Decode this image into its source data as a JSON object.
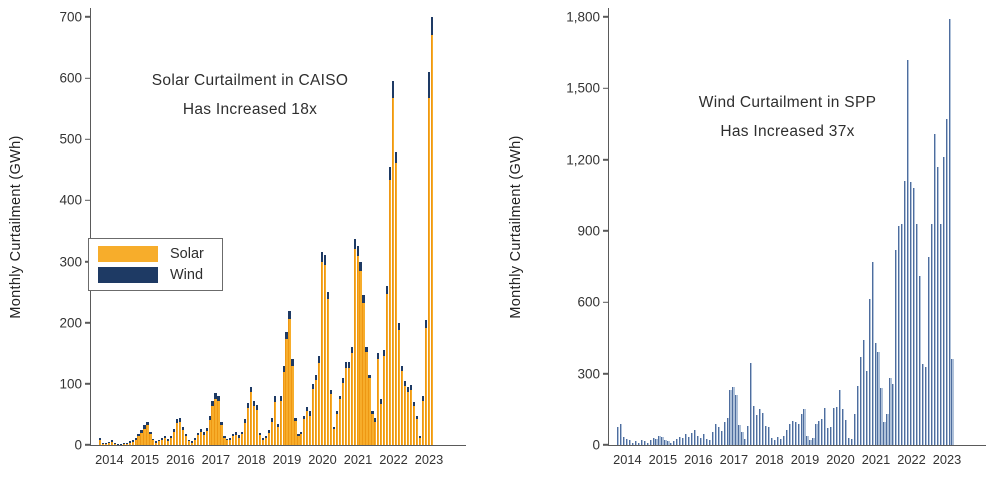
{
  "figure": {
    "background": "#ffffff"
  },
  "chart_data": [
    {
      "id": "caiso",
      "type": "bar",
      "stacked": true,
      "title_line1": "Solar Curtailment in CAISO",
      "title_line2": "Has Increased 18x",
      "ylabel": "Monthly Curtailment (GWh)",
      "ymax": 700,
      "ylim": [
        0,
        700
      ],
      "grid": false,
      "legend_position": "upper-left-inside",
      "start_month": "2014-01",
      "years": [
        "2014",
        "2015",
        "2016",
        "2017",
        "2018",
        "2019",
        "2020",
        "2021",
        "2022",
        "2023"
      ],
      "yticks": [
        {
          "v": 0,
          "label": "0"
        },
        {
          "v": 100,
          "label": "100"
        },
        {
          "v": 200,
          "label": "200"
        },
        {
          "v": 300,
          "label": "300"
        },
        {
          "v": 400,
          "label": "400"
        },
        {
          "v": 500,
          "label": "500"
        },
        {
          "v": 600,
          "label": "600"
        },
        {
          "v": 700,
          "label": "700"
        }
      ],
      "legend": [
        {
          "label": "Solar",
          "color": "#F7AD2B"
        },
        {
          "label": "Wind",
          "color": "#1E3A64"
        }
      ],
      "series": [
        {
          "name": "Solar",
          "color": "#F7AD2B",
          "edge": "#EE9713",
          "values": [
            8,
            2,
            2,
            3,
            5,
            2,
            1,
            1,
            2,
            2,
            4,
            5,
            9,
            14,
            20,
            27,
            32,
            18,
            8,
            4,
            6,
            9,
            11,
            7,
            12,
            21,
            36,
            38,
            25,
            14,
            6,
            4,
            9,
            16,
            21,
            17,
            23,
            41,
            64,
            76,
            72,
            32,
            12,
            8,
            9,
            14,
            17,
            12,
            18,
            36,
            60,
            86,
            64,
            58,
            16,
            9,
            12,
            20,
            38,
            71,
            30,
            72,
            120,
            173,
            206,
            130,
            39,
            15,
            18,
            42,
            55,
            48,
            92,
            106,
            134,
            299,
            295,
            238,
            83,
            26,
            51,
            75,
            102,
            126,
            126,
            150,
            320,
            309,
            284,
            232,
            152,
            109,
            50,
            38,
            140,
            67,
            145,
            247,
            433,
            568,
            462,
            188,
            121,
            97,
            87,
            90,
            63,
            42,
            12,
            72,
            191,
            568,
            670
          ]
        },
        {
          "name": "Wind",
          "color": "#1E3A64",
          "edge": "#1E3A64",
          "values": [
            4,
            2,
            1,
            2,
            3,
            2,
            1,
            1,
            1,
            2,
            2,
            3,
            3,
            4,
            5,
            6,
            6,
            4,
            2,
            2,
            2,
            3,
            4,
            3,
            3,
            5,
            6,
            7,
            5,
            4,
            2,
            2,
            3,
            4,
            5,
            5,
            5,
            7,
            8,
            9,
            8,
            6,
            3,
            2,
            3,
            4,
            5,
            4,
            4,
            6,
            8,
            9,
            8,
            8,
            4,
            3,
            3,
            5,
            7,
            9,
            5,
            8,
            10,
            12,
            14,
            10,
            6,
            3,
            4,
            6,
            7,
            7,
            8,
            9,
            11,
            16,
            15,
            12,
            7,
            4,
            5,
            6,
            8,
            9,
            9,
            10,
            17,
            16,
            16,
            13,
            8,
            6,
            5,
            7,
            10,
            8,
            10,
            13,
            22,
            27,
            18,
            12,
            9,
            8,
            8,
            8,
            7,
            6,
            3,
            8,
            14,
            42,
            30
          ]
        }
      ]
    },
    {
      "id": "spp",
      "type": "bar",
      "stacked": false,
      "title_line1": "Wind Curtailment in SPP",
      "title_line2": "Has Increased 37x",
      "ylabel": "Monthly Curtailment (GWh)",
      "ymax": 1800,
      "ylim": [
        0,
        1800
      ],
      "grid": false,
      "legend_position": "none",
      "start_month": "2014-01",
      "years": [
        "2014",
        "2015",
        "2016",
        "2017",
        "2018",
        "2019",
        "2020",
        "2021",
        "2022",
        "2023"
      ],
      "yticks": [
        {
          "v": 0,
          "label": "0"
        },
        {
          "v": 300,
          "label": "300"
        },
        {
          "v": 600,
          "label": "600"
        },
        {
          "v": 900,
          "label": "900"
        },
        {
          "v": 1200,
          "label": "1,200"
        },
        {
          "v": 1500,
          "label": "1,500"
        },
        {
          "v": 1800,
          "label": "1,800"
        }
      ],
      "legend": [],
      "series": [
        {
          "name": "Wind",
          "color": "#AFC1D9",
          "edge": "#4E6D9E",
          "values": [
            75,
            90,
            35,
            25,
            20,
            10,
            15,
            10,
            20,
            15,
            10,
            20,
            30,
            25,
            40,
            35,
            20,
            15,
            10,
            15,
            25,
            35,
            30,
            45,
            35,
            50,
            65,
            40,
            30,
            45,
            25,
            20,
            55,
            90,
            75,
            60,
            95,
            115,
            230,
            245,
            210,
            85,
            55,
            25,
            80,
            345,
            165,
            125,
            150,
            135,
            80,
            75,
            30,
            20,
            35,
            25,
            40,
            65,
            90,
            100,
            95,
            90,
            130,
            150,
            40,
            20,
            30,
            90,
            100,
            110,
            155,
            70,
            75,
            155,
            160,
            230,
            150,
            105,
            30,
            25,
            130,
            250,
            370,
            440,
            310,
            615,
            770,
            430,
            390,
            240,
            95,
            130,
            280,
            255,
            820,
            920,
            930,
            1110,
            1620,
            1105,
            1080,
            930,
            710,
            340,
            330,
            790,
            930,
            1310,
            1170,
            930,
            1210,
            1370,
            1790,
            360
          ]
        }
      ]
    }
  ]
}
